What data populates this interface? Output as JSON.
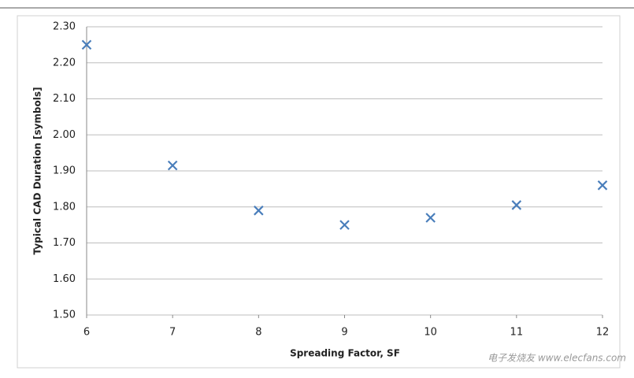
{
  "chart_data": {
    "type": "scatter",
    "x_label": "Spreading Factor, SF",
    "y_label": "Typical CAD Duration [symbols]",
    "watermark": "电子发烧友 www.elecfans.com",
    "color": "#4a7ebb",
    "x": [
      6,
      7,
      8,
      9,
      10,
      11,
      12
    ],
    "values": [
      2.25,
      1.915,
      1.79,
      1.75,
      1.77,
      1.805,
      1.86
    ],
    "xlim": [
      6,
      12
    ],
    "xticks": [
      6,
      7,
      8,
      9,
      10,
      11,
      12
    ],
    "ylim": [
      1.5,
      2.3
    ],
    "yticks": [
      {
        "value": 1.5,
        "label": "1.50"
      },
      {
        "value": 1.6,
        "label": "1.60"
      },
      {
        "value": 1.7,
        "label": "1.70"
      },
      {
        "value": 1.8,
        "label": "1.80"
      },
      {
        "value": 1.9,
        "label": "1.90"
      },
      {
        "value": 2.0,
        "label": "2.00"
      },
      {
        "value": 2.1,
        "label": "2.10"
      },
      {
        "value": 2.2,
        "label": "2.20"
      },
      {
        "value": 2.3,
        "label": "2.30"
      }
    ],
    "grid": true
  }
}
